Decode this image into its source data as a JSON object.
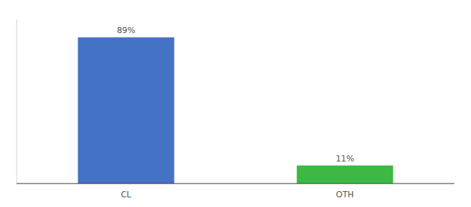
{
  "chart_data": {
    "type": "bar",
    "categories": [
      "CL",
      "OTH"
    ],
    "values": [
      89,
      11
    ],
    "value_labels": [
      "89%",
      "11%"
    ],
    "colors": [
      "#4472C4",
      "#3CB843"
    ],
    "ylim": [
      0,
      100
    ],
    "data_labels": true,
    "tick_labels": "x",
    "grid": false
  }
}
